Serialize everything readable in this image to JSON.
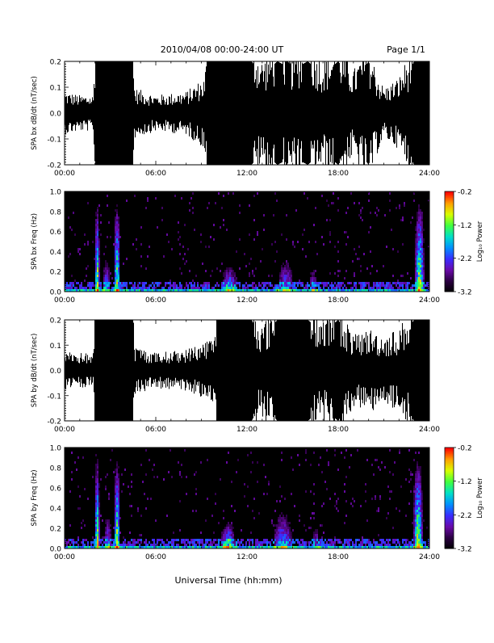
{
  "header": {
    "title": "2010/04/08  00:00-24:00 UT",
    "page": "Page 1/1"
  },
  "footer": {
    "xlabel": "Universal Time (hh:mm)"
  },
  "colors": {
    "background": "#ffffff",
    "waveform": "#000000",
    "spectrogram_background": "#000000",
    "colormap": [
      "#000000",
      "#2a0040",
      "#6a0aa8",
      "#3a2cff",
      "#0090ff",
      "#00e0c8",
      "#40ff40",
      "#d8ff00",
      "#ffa000",
      "#ff0000"
    ]
  },
  "chart_data": [
    {
      "id": "bx-waveform",
      "type": "line",
      "ylabel": "SPA bx dB/dt (nT/sec)",
      "ylim": [
        -0.2,
        0.2
      ],
      "yticks": [
        "0.2",
        "0.1",
        "0.0",
        "-0.1",
        "-0.2"
      ],
      "xlim": [
        0,
        24
      ],
      "xticks": [
        "00:00",
        "06:00",
        "12:00",
        "18:00",
        "24:00"
      ],
      "envelope": {
        "x": [
          0,
          1,
          1.9,
          2.0,
          3.5,
          4.5,
          4.6,
          6,
          8,
          9.2,
          9.4,
          12.3,
          13,
          14,
          15,
          16,
          17,
          18,
          19,
          20,
          20.5,
          21,
          22,
          23,
          24
        ],
        "upper": [
          0.06,
          0.05,
          0.05,
          0.2,
          0.2,
          0.2,
          0.07,
          0.05,
          0.06,
          0.1,
          0.2,
          0.2,
          0.15,
          0.2,
          0.17,
          0.2,
          0.15,
          0.2,
          0.12,
          0.2,
          0.12,
          0.07,
          0.1,
          0.2,
          0.2
        ],
        "lower": [
          -0.06,
          -0.05,
          -0.05,
          -0.2,
          -0.2,
          -0.2,
          -0.07,
          -0.05,
          -0.06,
          -0.1,
          -0.2,
          -0.2,
          -0.15,
          -0.2,
          -0.17,
          -0.2,
          -0.15,
          -0.2,
          -0.12,
          -0.2,
          -0.12,
          -0.07,
          -0.1,
          -0.2,
          -0.2
        ]
      }
    },
    {
      "id": "bx-spectrogram",
      "type": "heatmap",
      "ylabel": "SPA bx Freq (Hz)",
      "ylim": [
        0,
        1
      ],
      "yticks": [
        "1.0",
        "0.8",
        "0.6",
        "0.4",
        "0.2",
        "0.0"
      ],
      "xlim": [
        0,
        24
      ],
      "xticks": [
        "00:00",
        "06:00",
        "12:00",
        "18:00",
        "24:00"
      ],
      "colorbar": {
        "label": "Log₁₀ Power",
        "ticks": [
          "-0.2",
          "-1.2",
          "-2.2",
          "-3.2"
        ],
        "range": [
          -3.2,
          -0.2
        ]
      },
      "bursts": [
        {
          "t": 2.1,
          "width": 0.15,
          "top_freq": 1.0,
          "strength": 0.95
        },
        {
          "t": 3.4,
          "width": 0.2,
          "top_freq": 1.0,
          "strength": 0.9
        },
        {
          "t": 2.7,
          "width": 0.3,
          "top_freq": 0.4,
          "strength": 0.5
        },
        {
          "t": 10.8,
          "width": 0.5,
          "top_freq": 0.3,
          "strength": 0.7
        },
        {
          "t": 14.5,
          "width": 0.6,
          "top_freq": 0.4,
          "strength": 0.5
        },
        {
          "t": 16.3,
          "width": 0.3,
          "top_freq": 0.3,
          "strength": 0.45
        },
        {
          "t": 23.3,
          "width": 0.3,
          "top_freq": 1.0,
          "strength": 0.95
        }
      ]
    },
    {
      "id": "by-waveform",
      "type": "line",
      "ylabel": "SPA by dB/dt (nT/sec)",
      "ylim": [
        -0.2,
        0.2
      ],
      "yticks": [
        "0.2",
        "0.1",
        "0.0",
        "-0.1",
        "-0.2"
      ],
      "xlim": [
        0,
        24
      ],
      "xticks": [
        "00:00",
        "06:00",
        "12:00",
        "18:00",
        "24:00"
      ],
      "envelope": {
        "x": [
          0,
          1,
          1.9,
          2.0,
          3.5,
          4.5,
          4.6,
          6,
          8,
          9.0,
          9.9,
          10.0,
          12.3,
          13,
          14,
          15,
          16,
          17,
          18,
          19,
          20,
          21,
          22,
          23,
          24
        ],
        "upper": [
          0.06,
          0.05,
          0.05,
          0.2,
          0.2,
          0.2,
          0.07,
          0.05,
          0.06,
          0.08,
          0.1,
          0.2,
          0.2,
          0.13,
          0.2,
          0.2,
          0.2,
          0.15,
          0.2,
          0.1,
          0.12,
          0.1,
          0.12,
          0.2,
          0.2
        ],
        "lower": [
          -0.06,
          -0.05,
          -0.05,
          -0.2,
          -0.2,
          -0.2,
          -0.07,
          -0.05,
          -0.06,
          -0.08,
          -0.1,
          -0.2,
          -0.2,
          -0.13,
          -0.2,
          -0.2,
          -0.2,
          -0.15,
          -0.2,
          -0.1,
          -0.12,
          -0.1,
          -0.12,
          -0.2,
          -0.2
        ]
      }
    },
    {
      "id": "by-spectrogram",
      "type": "heatmap",
      "ylabel": "SPA by Freq (Hz)",
      "ylim": [
        0,
        1
      ],
      "yticks": [
        "1.0",
        "0.8",
        "0.6",
        "0.4",
        "0.2",
        "0.0"
      ],
      "xlim": [
        0,
        24
      ],
      "xticks": [
        "00:00",
        "06:00",
        "12:00",
        "18:00",
        "24:00"
      ],
      "colorbar": {
        "label": "Log₁₀ Power",
        "ticks": [
          "-0.2",
          "-1.2",
          "-2.2",
          "-3.2"
        ],
        "range": [
          -3.2,
          -0.2
        ]
      },
      "bursts": [
        {
          "t": 2.1,
          "width": 0.15,
          "top_freq": 1.0,
          "strength": 0.95
        },
        {
          "t": 3.4,
          "width": 0.2,
          "top_freq": 1.0,
          "strength": 0.9
        },
        {
          "t": 2.8,
          "width": 0.3,
          "top_freq": 0.4,
          "strength": 0.5
        },
        {
          "t": 10.7,
          "width": 0.5,
          "top_freq": 0.3,
          "strength": 0.75
        },
        {
          "t": 14.3,
          "width": 0.7,
          "top_freq": 0.45,
          "strength": 0.55
        },
        {
          "t": 16.5,
          "width": 0.3,
          "top_freq": 0.3,
          "strength": 0.4
        },
        {
          "t": 23.2,
          "width": 0.3,
          "top_freq": 1.0,
          "strength": 0.95
        }
      ]
    }
  ]
}
